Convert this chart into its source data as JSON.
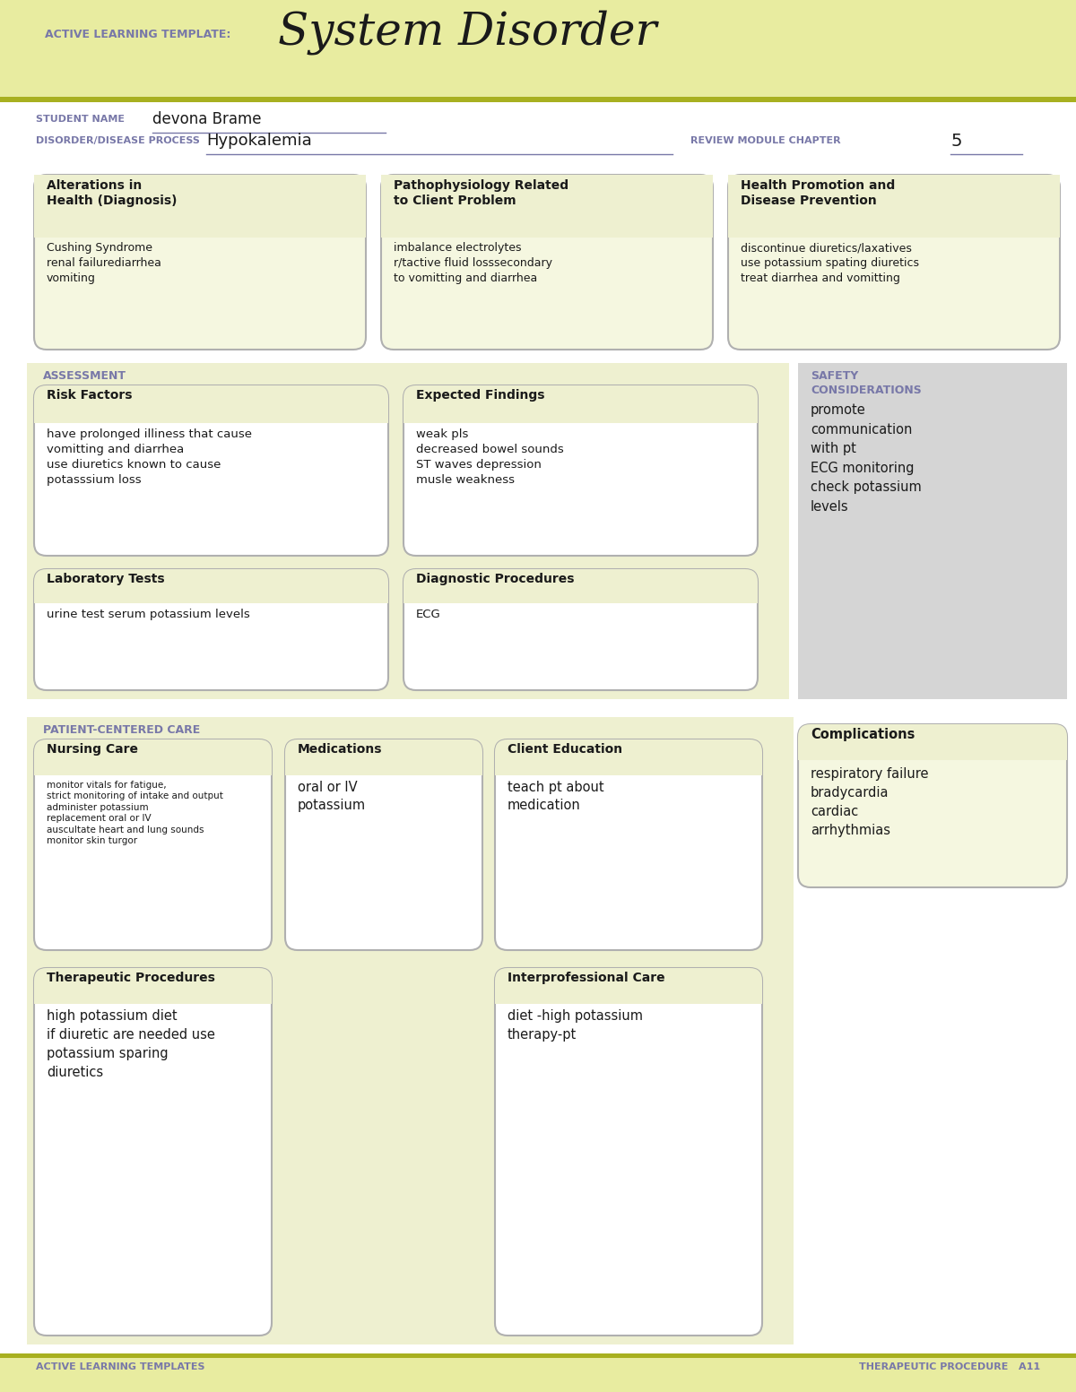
{
  "bg_color": "#ffffff",
  "header_bg": "#e8eca0",
  "olive_line": "#a8b020",
  "section_bg": "#eef0d0",
  "box_bg": "#f5f7e0",
  "box_border": "#b0b0b0",
  "safety_bg": "#d5d5d5",
  "purple": "#7878a8",
  "dark_text": "#1a1a1a",
  "title_label": "ACTIVE LEARNING TEMPLATE:",
  "title_main": "System Disorder",
  "student_label": "STUDENT NAME",
  "student_name": "devona Brame",
  "disorder_label": "DISORDER/DISEASE PROCESS",
  "disorder_name": "Hypokalemia",
  "review_label": "REVIEW MODULE CHAPTER",
  "review_num": "5",
  "box1_title": "Alterations in\nHealth (Diagnosis)",
  "box1_content": "Cushing Syndrome\nrenal failurediarrhea\nvomiting",
  "box2_title": "Pathophysiology Related\nto Client Problem",
  "box2_content": "imbalance electrolytes\nr/tactive fluid losssecondary\nto vomitting and diarrhea",
  "box3_title": "Health Promotion and\nDisease Prevention",
  "box3_content": "discontinue diuretics/laxatives\nuse potassium spating diuretics\ntreat diarrhea and vomitting",
  "assessment_label": "ASSESSMENT",
  "safety_label": "SAFETY\nCONSIDERATIONS",
  "safety_content": "promote\ncommunication\nwith pt\nECG monitoring\ncheck potassium\nlevels",
  "risk_title": "Risk Factors",
  "risk_content": "have prolonged illiness that cause\nvomitting and diarrhea\nuse diuretics known to cause\npotasssium loss",
  "expected_title": "Expected Findings",
  "expected_content": "weak pls\ndecreased bowel sounds\nST waves depression\nmusle weakness",
  "lab_title": "Laboratory Tests",
  "lab_content": "urine test serum potassium levels",
  "diag_title": "Diagnostic Procedures",
  "diag_content": "ECG",
  "patient_label": "PATIENT-CENTERED CARE",
  "comp_title": "Complications",
  "comp_content": "respiratory failure\nbradycardia\ncardiac\narrhythmias",
  "nursing_title": "Nursing Care",
  "nursing_content": "monitor vitals for fatigue,\nstrict monitoring of intake and output\nadminister potassium\nreplacement oral or IV\nauscultate heart and lung sounds\nmonitor skin turgor",
  "med_title": "Medications",
  "med_content": "oral or IV\npotassium",
  "client_title": "Client Education",
  "client_content": "teach pt about\nmedication",
  "therap_title": "Therapeutic Procedures",
  "therap_content": "high potassium diet\nif diuretic are needed use\npotassium sparing\ndiuretics",
  "interprof_title": "Interprofessional Care",
  "interprof_content": "diet -high potassium\ntherapy-pt",
  "footer_left": "ACTIVE LEARNING TEMPLATES",
  "footer_right": "THERAPEUTIC PROCEDURE   A11"
}
